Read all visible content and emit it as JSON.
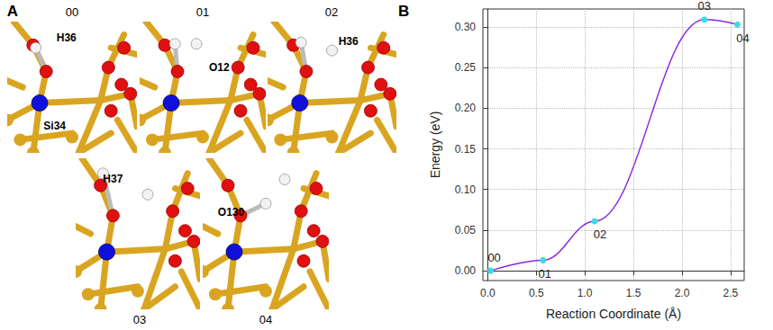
{
  "panel_labels": [
    "A",
    "B"
  ],
  "diagram": {
    "frames": [
      {
        "name": "00",
        "atom_labels": [
          "H36",
          "Si34"
        ]
      },
      {
        "name": "01",
        "atom_labels": [
          "O12"
        ]
      },
      {
        "name": "02",
        "atom_labels": [
          "H36"
        ]
      },
      {
        "name": "03",
        "atom_labels": [
          "H37"
        ]
      },
      {
        "name": "04",
        "atom_labels": [
          "O130"
        ]
      }
    ]
  },
  "chart_data": {
    "type": "line",
    "x_label": "Reaction Coordinate (Å)",
    "y_label": "Energy (eV)",
    "x": [
      0.03,
      0.57,
      1.1,
      2.23,
      2.57
    ],
    "series": [
      {
        "name": "Energy",
        "color": "#8a2be2",
        "values": [
          0.0,
          0.013,
          0.061,
          0.309,
          0.303
        ],
        "point_labels": [
          "00",
          "01",
          "02",
          "03",
          "04"
        ],
        "colors": [
          "#3fd8e8",
          "#3fd8e8",
          "#3fd8e8",
          "#3fd8e8",
          "#3fd8e8"
        ],
        "marker": "circle"
      }
    ],
    "xlim": [
      -0.05,
      2.64
    ],
    "xticks": [
      {
        "value": 0,
        "label": "0.0"
      },
      {
        "value": 0.5,
        "label": "0.5"
      },
      {
        "value": 1,
        "label": "1.0"
      },
      {
        "value": 1.5,
        "label": "1.5"
      },
      {
        "value": 2,
        "label": "2.0"
      },
      {
        "value": 2.5,
        "label": "2.5"
      }
    ],
    "ylim": [
      -0.012,
      0.322
    ],
    "yticks": [
      {
        "value": 0,
        "label": "0.00"
      },
      {
        "value": 0.05,
        "label": "0.05"
      },
      {
        "value": 0.1,
        "label": "0.10"
      },
      {
        "value": 0.15,
        "label": "0.15"
      },
      {
        "value": 0.2,
        "label": "0.20"
      },
      {
        "value": 0.25,
        "label": "0.25"
      },
      {
        "value": 0.3,
        "label": "0.30"
      }
    ],
    "grid": true
  }
}
